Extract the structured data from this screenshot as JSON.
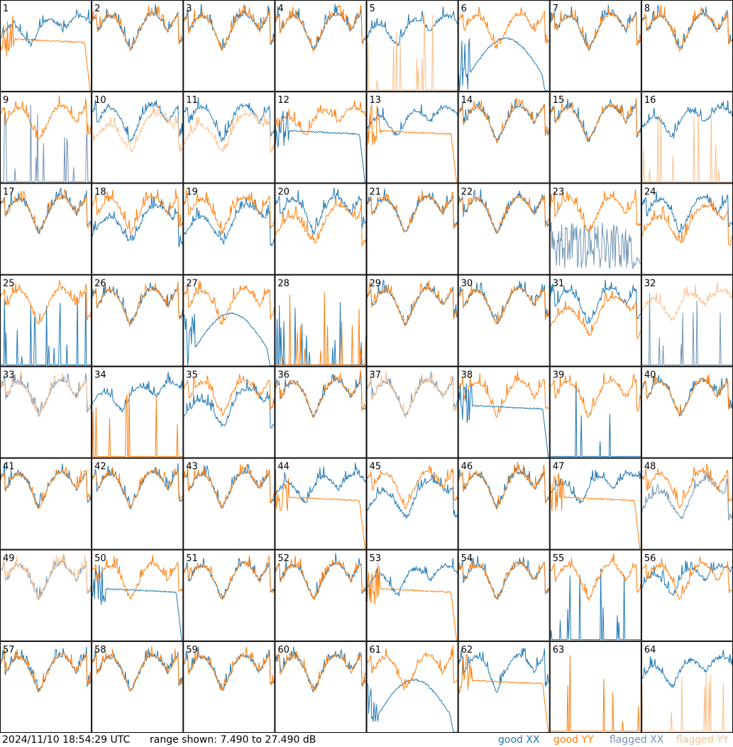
{
  "colors": {
    "good_xx": "#1f77b4",
    "good_yy": "#ff7f0e",
    "flagged_xx": "#7293b3",
    "flagged_yy": "#f9c08d",
    "background": "#ffffff",
    "grid": "#000000"
  },
  "chart_data": {
    "type": "line",
    "grid_rows": 8,
    "grid_cols": 8,
    "y_unit": "dB",
    "range_min_db": 7.49,
    "range_max_db": 27.49,
    "panels": [
      {
        "label": "1",
        "xx": {
          "shape": "A",
          "flag": false
        },
        "yy": {
          "shape": "droop",
          "flag": false
        }
      },
      {
        "label": "2",
        "xx": {
          "shape": "B",
          "flag": false
        },
        "yy": {
          "shape": "B",
          "flag": false
        }
      },
      {
        "label": "3",
        "xx": {
          "shape": "B",
          "flag": false
        },
        "yy": {
          "shape": "B",
          "flag": false
        }
      },
      {
        "label": "4",
        "xx": {
          "shape": "B",
          "flag": false
        },
        "yy": {
          "shape": "B",
          "flag": false
        }
      },
      {
        "label": "5",
        "xx": {
          "shape": "A",
          "flag": false
        },
        "yy": {
          "shape": "spikes",
          "flag": true
        }
      },
      {
        "label": "6",
        "xx": {
          "shape": "hump",
          "flag": false
        },
        "yy": {
          "shape": "B",
          "flag": false
        }
      },
      {
        "label": "7",
        "xx": {
          "shape": "B",
          "flag": false
        },
        "yy": {
          "shape": "B",
          "flag": false
        }
      },
      {
        "label": "8",
        "xx": {
          "shape": "B",
          "flag": false
        },
        "yy": {
          "shape": "B",
          "flag": false
        }
      },
      {
        "label": "9",
        "xx": {
          "shape": "spikes",
          "flag": true
        },
        "yy": {
          "shape": "B",
          "flag": false
        }
      },
      {
        "label": "10",
        "xx": {
          "shape": "B",
          "flag": false
        },
        "yy": {
          "shape": "C",
          "flag": true
        }
      },
      {
        "label": "11",
        "xx": {
          "shape": "B",
          "flag": false
        },
        "yy": {
          "shape": "C",
          "flag": true
        }
      },
      {
        "label": "12",
        "xx": {
          "shape": "droop",
          "flag": false
        },
        "yy": {
          "shape": "A",
          "flag": false
        }
      },
      {
        "label": "13",
        "xx": {
          "shape": "A",
          "flag": false
        },
        "yy": {
          "shape": "droop",
          "flag": false
        }
      },
      {
        "label": "14",
        "xx": {
          "shape": "B",
          "flag": false
        },
        "yy": {
          "shape": "B",
          "flag": false
        }
      },
      {
        "label": "15",
        "xx": {
          "shape": "B",
          "flag": false
        },
        "yy": {
          "shape": "B",
          "flag": false
        }
      },
      {
        "label": "16",
        "xx": {
          "shape": "A",
          "flag": false
        },
        "yy": {
          "shape": "spikes",
          "flag": true
        }
      },
      {
        "label": "17",
        "xx": {
          "shape": "B",
          "flag": false
        },
        "yy": {
          "shape": "B",
          "flag": false
        }
      },
      {
        "label": "18",
        "xx": {
          "shape": "C",
          "flag": false
        },
        "yy": {
          "shape": "B",
          "flag": false
        }
      },
      {
        "label": "19",
        "xx": {
          "shape": "C",
          "flag": false
        },
        "yy": {
          "shape": "B",
          "flag": false
        }
      },
      {
        "label": "20",
        "xx": {
          "shape": "B",
          "flag": false
        },
        "yy": {
          "shape": "C",
          "flag": false
        }
      },
      {
        "label": "21",
        "xx": {
          "shape": "B",
          "flag": false
        },
        "yy": {
          "shape": "B",
          "flag": false
        }
      },
      {
        "label": "22",
        "xx": {
          "shape": "B",
          "flag": false
        },
        "yy": {
          "shape": "B",
          "flag": false
        }
      },
      {
        "label": "23",
        "xx": {
          "shape": "noise",
          "flag": true
        },
        "yy": {
          "shape": "B",
          "flag": false
        }
      },
      {
        "label": "24",
        "xx": {
          "shape": "B",
          "flag": false
        },
        "yy": {
          "shape": "C",
          "flag": false
        }
      },
      {
        "label": "25",
        "xx": {
          "shape": "spikes",
          "flag": false
        },
        "yy": {
          "shape": "B",
          "flag": false
        }
      },
      {
        "label": "26",
        "xx": {
          "shape": "B",
          "flag": false
        },
        "yy": {
          "shape": "B",
          "flag": false
        }
      },
      {
        "label": "27",
        "xx": {
          "shape": "hump",
          "flag": false
        },
        "yy": {
          "shape": "B",
          "flag": false
        }
      },
      {
        "label": "28",
        "xx": {
          "shape": "spikes",
          "flag": false
        },
        "yy": {
          "shape": "spikes",
          "flag": false
        }
      },
      {
        "label": "29",
        "xx": {
          "shape": "B",
          "flag": false
        },
        "yy": {
          "shape": "B",
          "flag": false
        }
      },
      {
        "label": "30",
        "xx": {
          "shape": "B",
          "flag": false
        },
        "yy": {
          "shape": "B",
          "flag": false
        }
      },
      {
        "label": "31",
        "xx": {
          "shape": "B",
          "flag": false
        },
        "yy": {
          "shape": "C",
          "flag": false
        }
      },
      {
        "label": "32",
        "xx": {
          "shape": "spikes",
          "flag": true
        },
        "yy": {
          "shape": "A",
          "flag": true
        }
      },
      {
        "label": "33",
        "xx": {
          "shape": "B",
          "flag": true
        },
        "yy": {
          "shape": "B",
          "flag": true
        }
      },
      {
        "label": "34",
        "xx": {
          "shape": "A",
          "flag": false
        },
        "yy": {
          "shape": "spikes",
          "flag": false
        }
      },
      {
        "label": "35",
        "xx": {
          "shape": "C",
          "flag": false
        },
        "yy": {
          "shape": "B",
          "flag": false
        }
      },
      {
        "label": "36",
        "xx": {
          "shape": "B",
          "flag": false
        },
        "yy": {
          "shape": "B",
          "flag": false
        }
      },
      {
        "label": "37",
        "xx": {
          "shape": "B",
          "flag": true
        },
        "yy": {
          "shape": "B",
          "flag": true
        }
      },
      {
        "label": "38",
        "xx": {
          "shape": "droop",
          "flag": false
        },
        "yy": {
          "shape": "B",
          "flag": false
        }
      },
      {
        "label": "39",
        "xx": {
          "shape": "spikes",
          "flag": false
        },
        "yy": {
          "shape": "B",
          "flag": false
        }
      },
      {
        "label": "40",
        "xx": {
          "shape": "B",
          "flag": false
        },
        "yy": {
          "shape": "B",
          "flag": false
        }
      },
      {
        "label": "41",
        "xx": {
          "shape": "B",
          "flag": false
        },
        "yy": {
          "shape": "B",
          "flag": false
        }
      },
      {
        "label": "42",
        "xx": {
          "shape": "B",
          "flag": false
        },
        "yy": {
          "shape": "B",
          "flag": false
        }
      },
      {
        "label": "43",
        "xx": {
          "shape": "B",
          "flag": false
        },
        "yy": {
          "shape": "B",
          "flag": false
        }
      },
      {
        "label": "44",
        "xx": {
          "shape": "A",
          "flag": false
        },
        "yy": {
          "shape": "droop",
          "flag": false
        }
      },
      {
        "label": "45",
        "xx": {
          "shape": "C",
          "flag": false
        },
        "yy": {
          "shape": "B",
          "flag": false
        }
      },
      {
        "label": "46",
        "xx": {
          "shape": "B",
          "flag": false
        },
        "yy": {
          "shape": "B",
          "flag": false
        }
      },
      {
        "label": "47",
        "xx": {
          "shape": "A",
          "flag": false
        },
        "yy": {
          "shape": "droop",
          "flag": false
        }
      },
      {
        "label": "48",
        "xx": {
          "shape": "C",
          "flag": true
        },
        "yy": {
          "shape": "B",
          "flag": false
        }
      },
      {
        "label": "49",
        "xx": {
          "shape": "B",
          "flag": true
        },
        "yy": {
          "shape": "B",
          "flag": true
        }
      },
      {
        "label": "50",
        "xx": {
          "shape": "droop",
          "flag": false
        },
        "yy": {
          "shape": "B",
          "flag": false
        }
      },
      {
        "label": "51",
        "xx": {
          "shape": "B",
          "flag": false
        },
        "yy": {
          "shape": "B",
          "flag": false
        }
      },
      {
        "label": "52",
        "xx": {
          "shape": "B",
          "flag": false
        },
        "yy": {
          "shape": "B",
          "flag": false
        }
      },
      {
        "label": "53",
        "xx": {
          "shape": "A",
          "flag": false
        },
        "yy": {
          "shape": "droop",
          "flag": false
        }
      },
      {
        "label": "54",
        "xx": {
          "shape": "B",
          "flag": false
        },
        "yy": {
          "shape": "B",
          "flag": false
        }
      },
      {
        "label": "55",
        "xx": {
          "shape": "spikes",
          "flag": false
        },
        "yy": {
          "shape": "B",
          "flag": false
        }
      },
      {
        "label": "56",
        "xx": {
          "shape": "A",
          "flag": false
        },
        "yy": {
          "shape": "B",
          "flag": false
        }
      },
      {
        "label": "57",
        "xx": {
          "shape": "B",
          "flag": false
        },
        "yy": {
          "shape": "B",
          "flag": false
        }
      },
      {
        "label": "58",
        "xx": {
          "shape": "B",
          "flag": false
        },
        "yy": {
          "shape": "B",
          "flag": false
        }
      },
      {
        "label": "59",
        "xx": {
          "shape": "B",
          "flag": false
        },
        "yy": {
          "shape": "B",
          "flag": false
        }
      },
      {
        "label": "60",
        "xx": {
          "shape": "B",
          "flag": false
        },
        "yy": {
          "shape": "B",
          "flag": false
        }
      },
      {
        "label": "61",
        "xx": {
          "shape": "hump",
          "flag": false
        },
        "yy": {
          "shape": "B",
          "flag": false
        }
      },
      {
        "label": "62",
        "xx": {
          "shape": "B",
          "flag": false
        },
        "yy": {
          "shape": "droop",
          "flag": false
        }
      },
      {
        "label": "63",
        "xx": {
          "shape": "none",
          "flag": false
        },
        "yy": {
          "shape": "spikes",
          "flag": false
        }
      },
      {
        "label": "64",
        "xx": {
          "shape": "A",
          "flag": false
        },
        "yy": {
          "shape": "spikes",
          "flag": true
        }
      }
    ]
  },
  "footer": {
    "timestamp": "2024/11/10 18:54:29 UTC",
    "range_text": "range shown: 7.490 to 27.490 dB"
  },
  "legend": {
    "good_xx": "good XX",
    "good_yy": "good YY",
    "flagged_xx": "flagged XX",
    "flagged_yy": "flagged YY"
  }
}
